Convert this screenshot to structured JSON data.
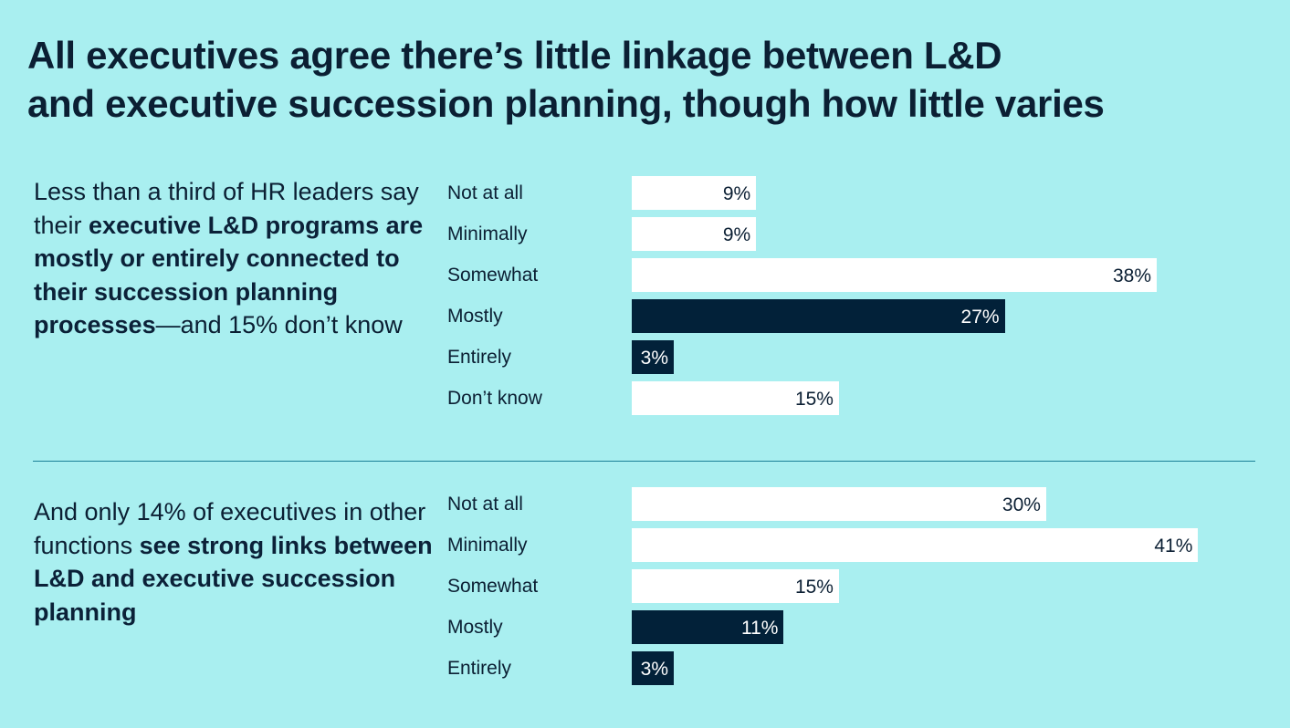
{
  "title": {
    "line1": "All executives agree there’s little linkage between L&D",
    "line2": "and executive succession planning, though how little varies"
  },
  "colors": {
    "background": "#a9eff0",
    "bar_light": "#ffffff",
    "bar_dark": "#022139",
    "text": "#0b1f33",
    "divider": "#1a7f97"
  },
  "section1": {
    "desc": {
      "part1": "Less than a third of HR leaders say their ",
      "bold": "executive L&D programs are mostly or entirely connected to their succession planning processes",
      "part2": "—and 15% don’t know"
    }
  },
  "section2": {
    "desc": {
      "part1": "And only 14% of executives in other functions ",
      "bold": "see strong links between L&D and executive succession planning",
      "part2": ""
    }
  },
  "chart_data": [
    {
      "type": "bar",
      "orientation": "horizontal",
      "title": "",
      "xlabel": "",
      "ylabel": "",
      "xlim": [
        0,
        38
      ],
      "grid": false,
      "categories": [
        "Not at all",
        "Minimally",
        "Somewhat",
        "Mostly",
        "Entirely",
        "Don’t know"
      ],
      "values": [
        9,
        9,
        38,
        27,
        3,
        15
      ],
      "labels": [
        "9%",
        "9%",
        "38%",
        "27%",
        "3%",
        "15%"
      ],
      "highlight": [
        false,
        false,
        false,
        true,
        true,
        false
      ]
    },
    {
      "type": "bar",
      "orientation": "horizontal",
      "title": "",
      "xlabel": "",
      "ylabel": "",
      "xlim": [
        0,
        38
      ],
      "grid": false,
      "categories": [
        "Not at all",
        "Minimally",
        "Somewhat",
        "Mostly",
        "Entirely"
      ],
      "values": [
        30,
        41,
        15,
        11,
        3
      ],
      "labels": [
        "30%",
        "41%",
        "15%",
        "11%",
        "3%"
      ],
      "highlight": [
        false,
        false,
        false,
        true,
        true
      ]
    }
  ]
}
